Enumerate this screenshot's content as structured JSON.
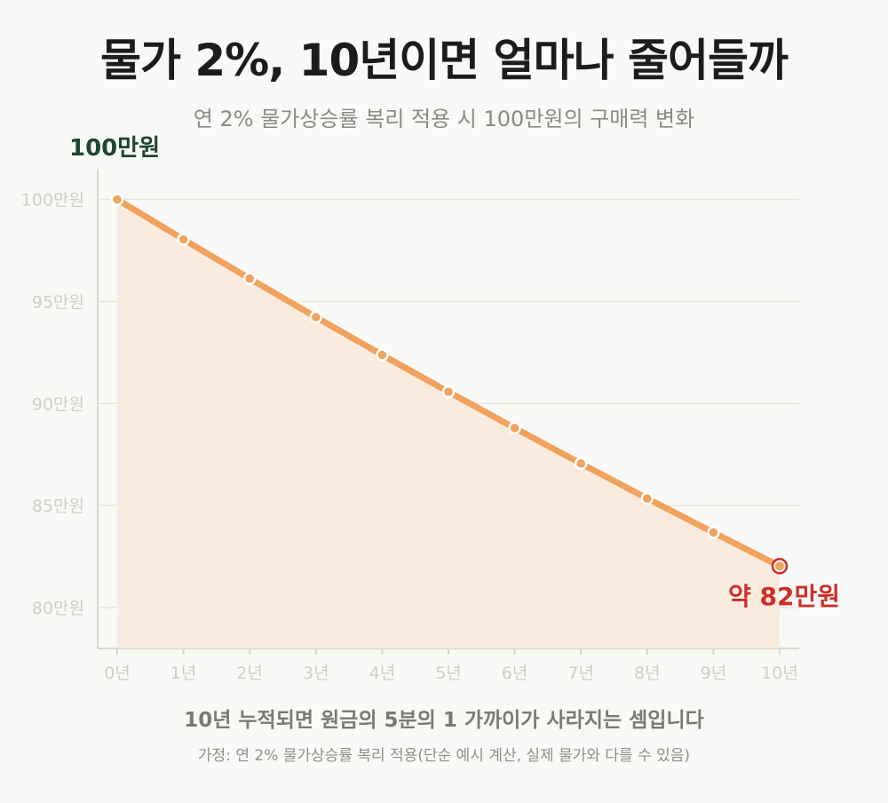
{
  "title": "물가 2%, 10년이면 얼마나 줄어들까",
  "subtitle": "연 2% 물가상승률 복리 적용 시 100만원의 구매력 변화",
  "chart_data": {
    "type": "area",
    "x": [
      "0년",
      "1년",
      "2년",
      "3년",
      "4년",
      "5년",
      "6년",
      "7년",
      "8년",
      "9년",
      "10년"
    ],
    "values": [
      100,
      98.04,
      96.12,
      94.23,
      92.38,
      90.57,
      88.8,
      87.06,
      85.35,
      83.68,
      82.03
    ],
    "ylim": [
      78,
      101.5
    ],
    "yticks": [
      {
        "value": 100,
        "label": "100만원"
      },
      {
        "value": 95,
        "label": "95만원"
      },
      {
        "value": 90,
        "label": "90만원"
      },
      {
        "value": 85,
        "label": "85만원"
      },
      {
        "value": 80,
        "label": "80만원"
      }
    ],
    "grid": true,
    "start_annotation": "100만원",
    "end_annotation": "약 82만원",
    "colors": {
      "line": "#f0a25e",
      "fill": "#f9eadb",
      "start_label": "#1e4632",
      "end_label": "#cc2f2a",
      "grid": "#e8e6df",
      "axis": "#d9d6cc",
      "tick_text": "#d0cdc4"
    }
  },
  "footer": {
    "main": "10년 누적되면 원금의 5분의 1 가까이가 사라지는 셈입니다",
    "note": "가정: 연 2% 물가상승률 복리 적용(단순 예시 계산, 실제 물가와 다를 수 있음)"
  }
}
